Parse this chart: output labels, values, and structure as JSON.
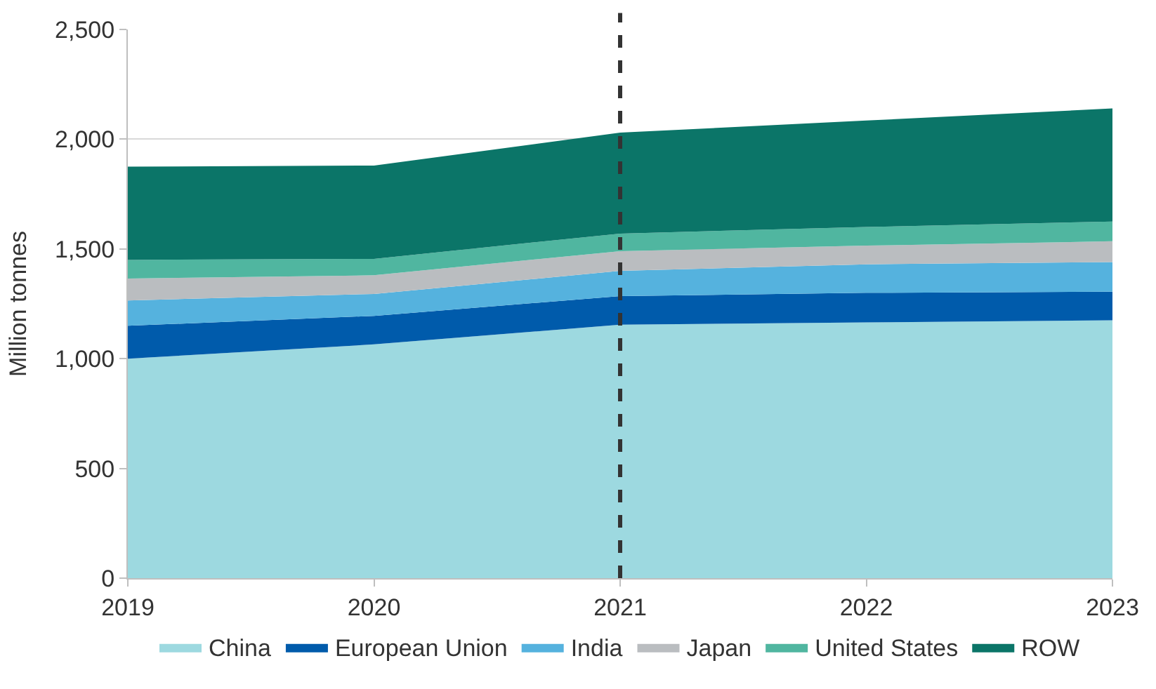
{
  "chart_data": {
    "type": "area",
    "stacked": true,
    "ylabel": "Million tonnes",
    "x": [
      2019,
      2020,
      2021,
      2022,
      2023
    ],
    "series": [
      {
        "name": "China",
        "color": "#9dd9e0",
        "values": [
          1000,
          1065,
          1155,
          1165,
          1175
        ]
      },
      {
        "name": "European Union",
        "color": "#005bab",
        "values": [
          150,
          130,
          130,
          135,
          130
        ]
      },
      {
        "name": "India",
        "color": "#55b2de",
        "values": [
          115,
          100,
          115,
          130,
          135
        ]
      },
      {
        "name": "Japan",
        "color": "#babdc0",
        "values": [
          100,
          85,
          90,
          85,
          95
        ]
      },
      {
        "name": "United States",
        "color": "#50b6a0",
        "values": [
          85,
          75,
          80,
          85,
          90
        ]
      },
      {
        "name": "ROW",
        "color": "#0b7568",
        "values": [
          425,
          425,
          460,
          485,
          515
        ]
      }
    ],
    "xlim": [
      2019,
      2023
    ],
    "xticks": [
      2019,
      2020,
      2021,
      2022,
      2023
    ],
    "ylim": [
      0,
      2500
    ],
    "yticks": [
      {
        "value": 0,
        "label": "0"
      },
      {
        "value": 500,
        "label": "500"
      },
      {
        "value": 1000,
        "label": "1,000"
      },
      {
        "value": 1500,
        "label": "1,500"
      },
      {
        "value": 2000,
        "label": "2,000"
      },
      {
        "value": 2500,
        "label": "2,500"
      }
    ],
    "ref_lines": [
      {
        "axis": "x",
        "value": 2021,
        "color": "#333333",
        "line_style": "dashed"
      }
    ],
    "grid": "y",
    "legend": "bottom"
  }
}
